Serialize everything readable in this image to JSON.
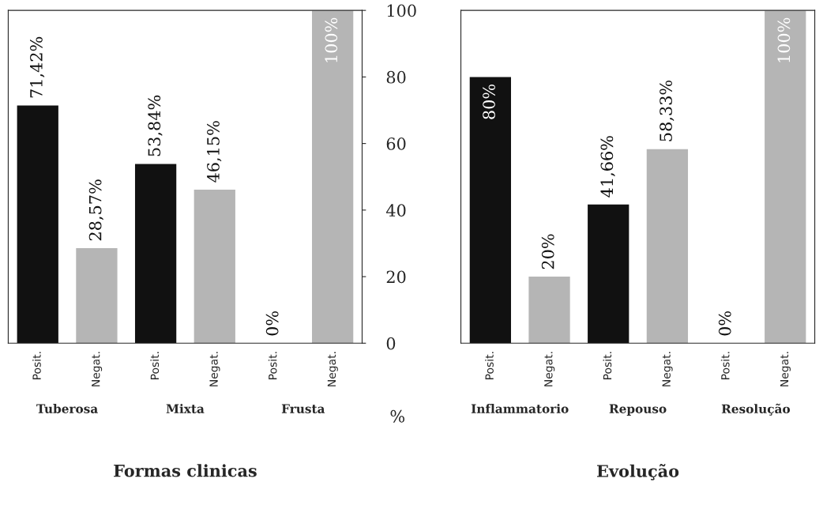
{
  "chart_data": [
    {
      "type": "bar",
      "xlabel": "Formas clinicas",
      "ylabel": "%",
      "categories": [
        "Posit.",
        "Negat.",
        "Posit.",
        "Negat.",
        "Posit.",
        "Negat."
      ],
      "values": [
        71.42,
        28.57,
        53.84,
        46.15,
        0,
        100
      ],
      "colors": [
        "#111111",
        "#b5b5b5",
        "#111111",
        "#b5b5b5",
        "#111111",
        "#b5b5b5"
      ],
      "value_labels": [
        "71,42%",
        "28,57%",
        "53,84%",
        "46,15%",
        "0%",
        "100%"
      ],
      "annotations": [
        "Tuberosa",
        "Mixta",
        "Frusta"
      ],
      "ylim": [
        0,
        100
      ],
      "yticks": [
        0,
        20,
        40,
        60,
        80,
        100
      ]
    },
    {
      "type": "bar",
      "xlabel": "Evolução",
      "categories": [
        "Posit.",
        "Negat.",
        "Posit.",
        "Negat.",
        "Posit.",
        "Negat."
      ],
      "values": [
        80,
        20,
        41.66,
        58.33,
        0,
        100
      ],
      "colors": [
        "#111111",
        "#b5b5b5",
        "#111111",
        "#b5b5b5",
        "#111111",
        "#b5b5b5"
      ],
      "value_labels": [
        "80%",
        "20%",
        "41,66%",
        "58,33%",
        "0%",
        "100%"
      ],
      "annotations": [
        "Inflammatorio",
        "Repouso",
        "Resolução"
      ],
      "ylim": [
        0,
        100
      ],
      "yticks": [
        0,
        20,
        40,
        60,
        80,
        100
      ],
      "tick_labels": "x"
    }
  ]
}
